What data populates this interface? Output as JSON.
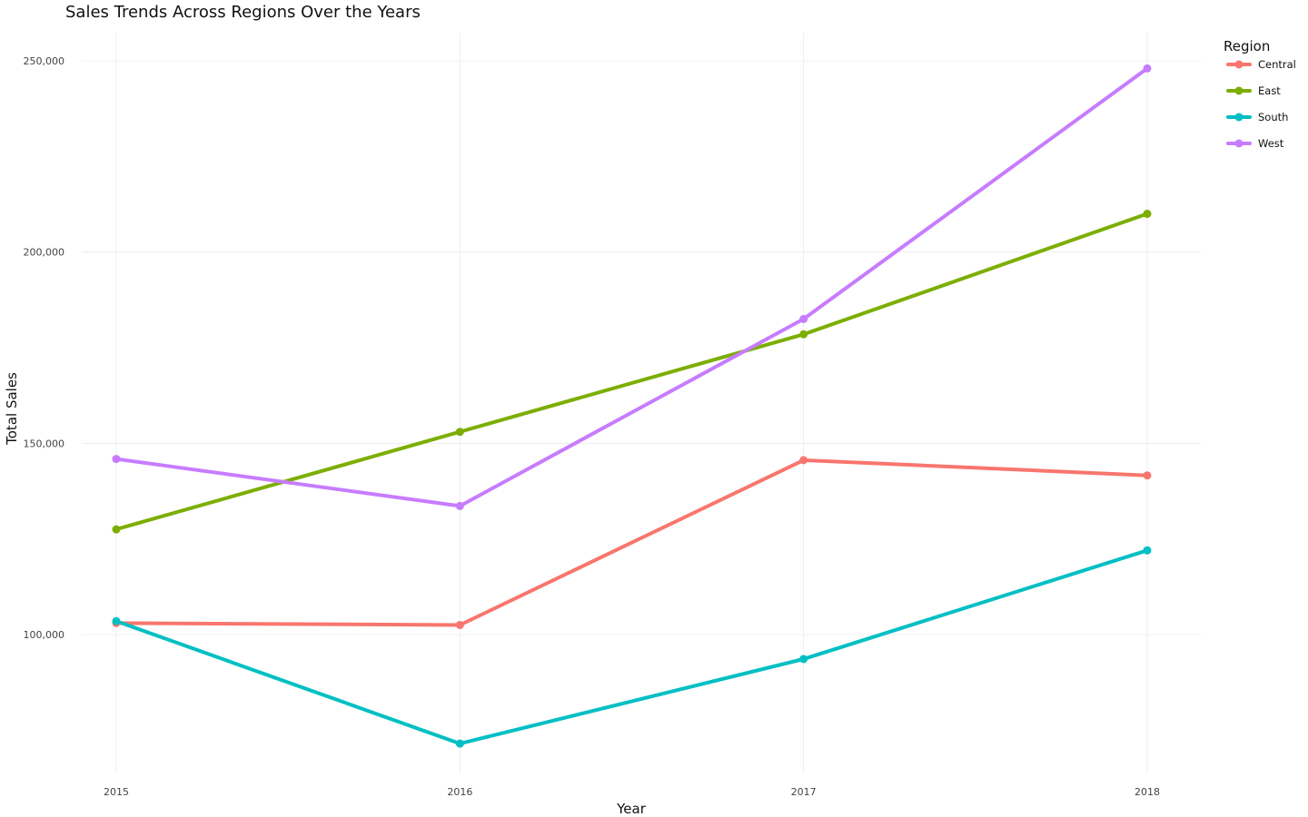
{
  "chart_data": {
    "type": "line",
    "title": "Sales Trends Across Regions Over the Years",
    "xlabel": "Year",
    "ylabel": "Total Sales",
    "x": [
      2015,
      2016,
      2017,
      2018
    ],
    "x_tick_labels": [
      "2015",
      "2016",
      "2017",
      "2018"
    ],
    "y_ticks": [
      100000,
      150000,
      200000,
      250000
    ],
    "y_tick_labels": [
      "100,000",
      "150,000",
      "200,000",
      "250,000"
    ],
    "ylim": [
      67000,
      258000
    ],
    "grid": true,
    "legend": {
      "title": "Region",
      "position": "top-right"
    },
    "series": [
      {
        "name": "Central",
        "color": "#F8766D",
        "values": [
          103000,
          102500,
          145600,
          141600
        ]
      },
      {
        "name": "East",
        "color": "#7CAE00",
        "values": [
          127500,
          153000,
          178500,
          210000
        ]
      },
      {
        "name": "South",
        "color": "#00BFC4",
        "values": [
          103500,
          71500,
          93600,
          122000
        ]
      },
      {
        "name": "West",
        "color": "#C77CFF",
        "values": [
          145900,
          133600,
          182500,
          248000
        ]
      }
    ]
  }
}
